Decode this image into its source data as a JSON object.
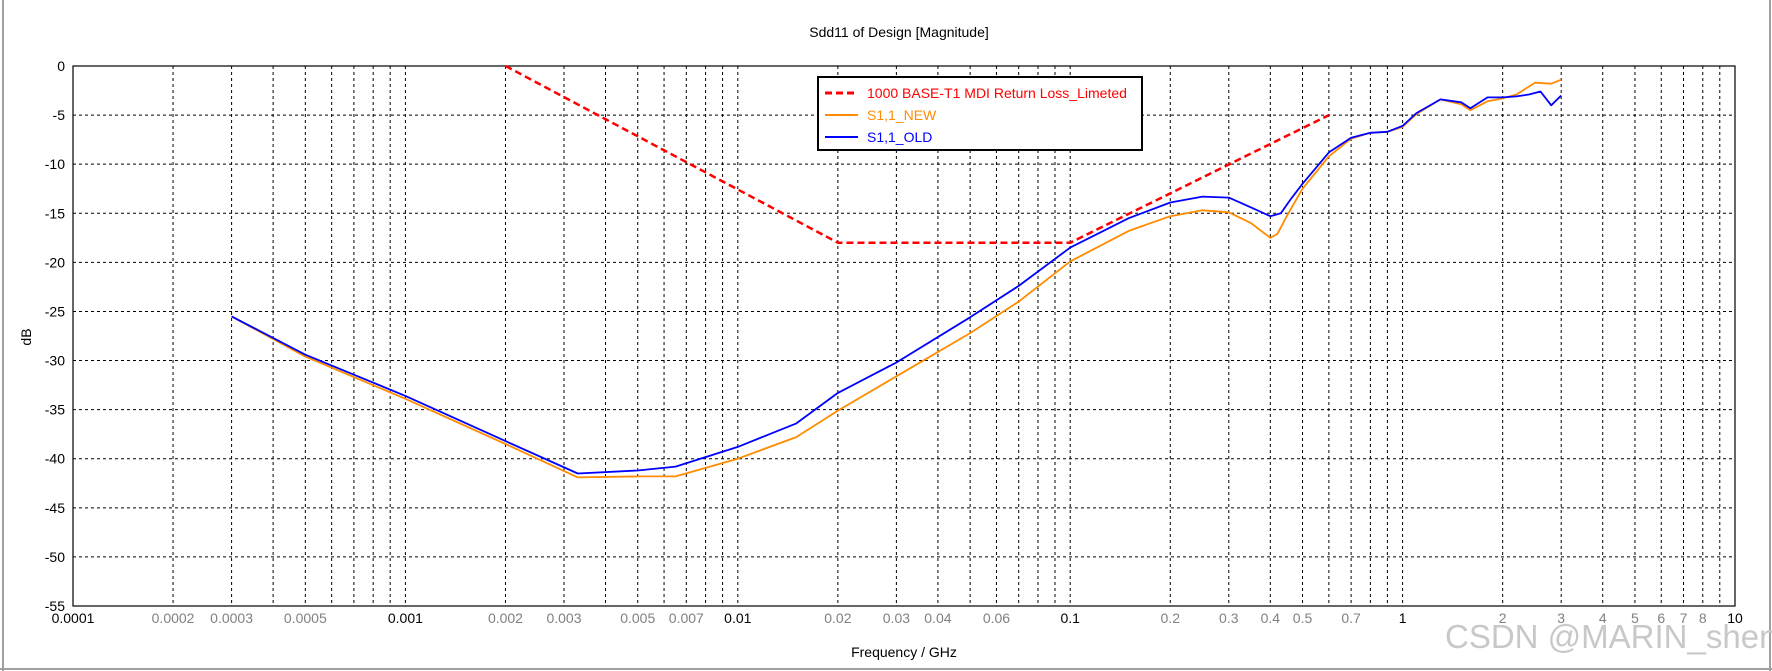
{
  "watermark": "CSDN @MARIN_shen",
  "colors": {
    "limit": "#ff0000",
    "new": "#ff8c00",
    "old": "#0000ff",
    "grid": "#000000"
  },
  "chart_data": {
    "type": "line",
    "title": "Sdd11 of Design [Magnitude]",
    "xlabel": "Frequency / GHz",
    "ylabel": "dB",
    "xscale": "log",
    "xlim": [
      0.0001,
      10
    ],
    "ylim": [
      -55,
      0
    ],
    "grid": true,
    "legend_position": "top-center",
    "y_ticks": [
      "0",
      "-5",
      "-10",
      "-15",
      "-20",
      "-25",
      "-30",
      "-35",
      "-40",
      "-45",
      "-50",
      "-55"
    ],
    "x_ticks": [
      {
        "v": 0.0001,
        "label": "0.0001",
        "major": true
      },
      {
        "v": 0.0002,
        "label": "0.0002",
        "major": false
      },
      {
        "v": 0.0003,
        "label": "0.0003",
        "major": false
      },
      {
        "v": 0.0005,
        "label": "0.0005",
        "major": false
      },
      {
        "v": 0.001,
        "label": "0.001",
        "major": true
      },
      {
        "v": 0.002,
        "label": "0.002",
        "major": false
      },
      {
        "v": 0.003,
        "label": "0.003",
        "major": false
      },
      {
        "v": 0.005,
        "label": "0.005",
        "major": false
      },
      {
        "v": 0.007,
        "label": "0.007",
        "major": false
      },
      {
        "v": 0.01,
        "label": "0.01",
        "major": true
      },
      {
        "v": 0.02,
        "label": "0.02",
        "major": false
      },
      {
        "v": 0.03,
        "label": "0.03",
        "major": false
      },
      {
        "v": 0.04,
        "label": "0.04",
        "major": false
      },
      {
        "v": 0.06,
        "label": "0.06",
        "major": false
      },
      {
        "v": 0.1,
        "label": "0.1",
        "major": true
      },
      {
        "v": 0.2,
        "label": "0.2",
        "major": false
      },
      {
        "v": 0.3,
        "label": "0.3",
        "major": false
      },
      {
        "v": 0.4,
        "label": "0.4",
        "major": false
      },
      {
        "v": 0.5,
        "label": "0.5",
        "major": false
      },
      {
        "v": 0.7,
        "label": "0.7",
        "major": false
      },
      {
        "v": 1,
        "label": "1",
        "major": true
      },
      {
        "v": 2,
        "label": "2",
        "major": false
      },
      {
        "v": 3,
        "label": "3",
        "major": false
      },
      {
        "v": 4,
        "label": "4",
        "major": false
      },
      {
        "v": 5,
        "label": "5",
        "major": false
      },
      {
        "v": 6,
        "label": "6",
        "major": false
      },
      {
        "v": 7,
        "label": "7",
        "major": false
      },
      {
        "v": 8,
        "label": "8",
        "major": false
      },
      {
        "v": 10,
        "label": "10",
        "major": true
      }
    ],
    "series": [
      {
        "name": "1000 BASE-T1 MDI Return Loss_Limeted",
        "style": "dashed",
        "color": "#ff0000",
        "points": [
          [
            0.002,
            0
          ],
          [
            0.02,
            -18
          ],
          [
            0.1,
            -18
          ],
          [
            0.6,
            -5
          ]
        ]
      },
      {
        "name": "S1,1_NEW",
        "style": "solid",
        "color": "#ff8c00",
        "points": [
          [
            0.0003,
            -25.5
          ],
          [
            0.0005,
            -29.6
          ],
          [
            0.001,
            -33.9
          ],
          [
            0.002,
            -38.5
          ],
          [
            0.0033,
            -41.9
          ],
          [
            0.005,
            -41.8
          ],
          [
            0.0065,
            -41.8
          ],
          [
            0.01,
            -40.0
          ],
          [
            0.015,
            -37.8
          ],
          [
            0.02,
            -35.1
          ],
          [
            0.03,
            -31.6
          ],
          [
            0.05,
            -27.2
          ],
          [
            0.07,
            -24.0
          ],
          [
            0.1,
            -19.9
          ],
          [
            0.15,
            -16.8
          ],
          [
            0.2,
            -15.3
          ],
          [
            0.25,
            -14.7
          ],
          [
            0.3,
            -14.9
          ],
          [
            0.35,
            -16.0
          ],
          [
            0.4,
            -17.5
          ],
          [
            0.42,
            -17.1
          ],
          [
            0.45,
            -15.2
          ],
          [
            0.5,
            -12.5
          ],
          [
            0.6,
            -9.2
          ],
          [
            0.7,
            -7.4
          ],
          [
            0.8,
            -6.8
          ],
          [
            0.9,
            -6.7
          ],
          [
            1.0,
            -6.2
          ],
          [
            1.1,
            -4.9
          ],
          [
            1.3,
            -3.4
          ],
          [
            1.5,
            -3.9
          ],
          [
            1.6,
            -4.5
          ],
          [
            1.8,
            -3.6
          ],
          [
            2.0,
            -3.3
          ],
          [
            2.2,
            -2.9
          ],
          [
            2.5,
            -1.7
          ],
          [
            2.8,
            -1.8
          ],
          [
            3.0,
            -1.4
          ]
        ]
      },
      {
        "name": "S1,1_OLD",
        "style": "solid",
        "color": "#0000ff",
        "points": [
          [
            0.0003,
            -25.5
          ],
          [
            0.0005,
            -29.4
          ],
          [
            0.001,
            -33.6
          ],
          [
            0.002,
            -38.2
          ],
          [
            0.0033,
            -41.5
          ],
          [
            0.005,
            -41.2
          ],
          [
            0.0065,
            -40.8
          ],
          [
            0.01,
            -38.8
          ],
          [
            0.015,
            -36.4
          ],
          [
            0.02,
            -33.3
          ],
          [
            0.03,
            -30.2
          ],
          [
            0.05,
            -25.6
          ],
          [
            0.07,
            -22.4
          ],
          [
            0.1,
            -18.5
          ],
          [
            0.15,
            -15.5
          ],
          [
            0.2,
            -13.9
          ],
          [
            0.25,
            -13.3
          ],
          [
            0.3,
            -13.4
          ],
          [
            0.35,
            -14.4
          ],
          [
            0.4,
            -15.3
          ],
          [
            0.43,
            -15.0
          ],
          [
            0.46,
            -13.6
          ],
          [
            0.5,
            -12.0
          ],
          [
            0.6,
            -8.8
          ],
          [
            0.7,
            -7.3
          ],
          [
            0.8,
            -6.8
          ],
          [
            0.9,
            -6.7
          ],
          [
            1.0,
            -6.1
          ],
          [
            1.1,
            -4.8
          ],
          [
            1.3,
            -3.4
          ],
          [
            1.5,
            -3.7
          ],
          [
            1.6,
            -4.3
          ],
          [
            1.8,
            -3.2
          ],
          [
            2.0,
            -3.2
          ],
          [
            2.2,
            -3.1
          ],
          [
            2.4,
            -2.9
          ],
          [
            2.6,
            -2.6
          ],
          [
            2.8,
            -4.0
          ],
          [
            3.0,
            -3.0
          ]
        ]
      }
    ]
  }
}
